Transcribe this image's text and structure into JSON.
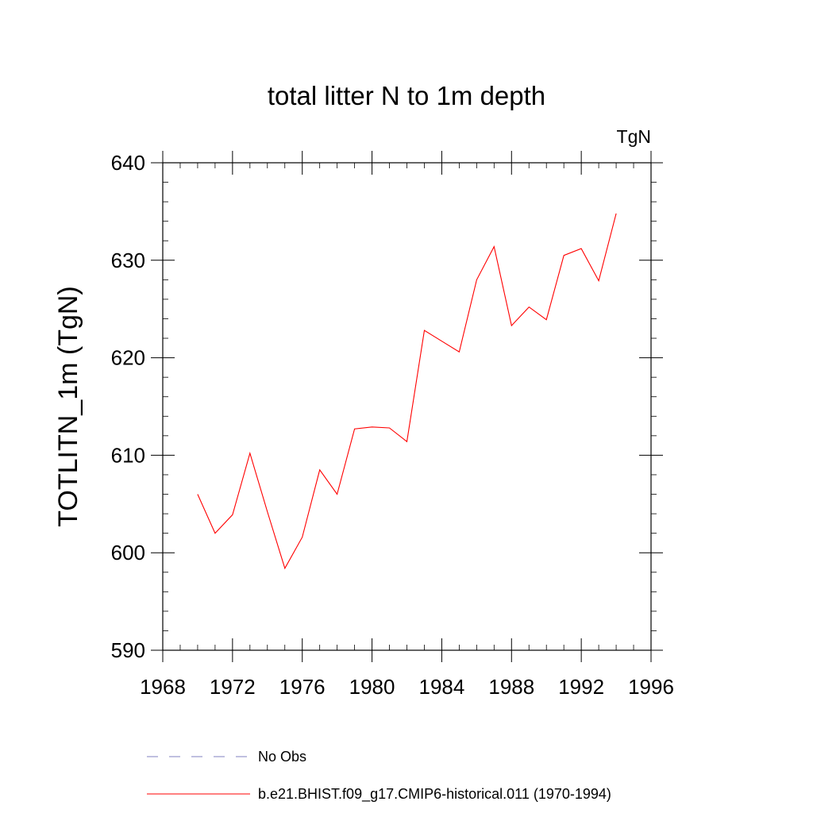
{
  "chart_data": {
    "type": "line",
    "title": "total litter N to 1m depth",
    "units_label": "TgN",
    "ylabel": "TOTLITN_1m  (TgN)",
    "xlabel": "",
    "xlim": [
      1968,
      1996
    ],
    "ylim": [
      590,
      640
    ],
    "x_ticks": [
      1968,
      1972,
      1976,
      1980,
      1984,
      1988,
      1992,
      1996
    ],
    "y_ticks": [
      590,
      600,
      610,
      620,
      630,
      640
    ],
    "x_minor_step": 1,
    "y_minor_step": 2,
    "grid": false,
    "legend_position": "bottom",
    "series": [
      {
        "name": "b.e21.BHIST.f09_g17.CMIP6-historical.011 (1970-1994)",
        "color": "#ff0000",
        "dash": "solid",
        "x": [
          1970,
          1971,
          1972,
          1973,
          1974,
          1975,
          1976,
          1977,
          1978,
          1979,
          1980,
          1981,
          1982,
          1983,
          1984,
          1985,
          1986,
          1987,
          1988,
          1989,
          1990,
          1991,
          1992,
          1993,
          1994
        ],
        "y": [
          606.0,
          602.0,
          603.9,
          610.2,
          604.2,
          598.4,
          601.6,
          608.5,
          606.0,
          612.7,
          612.9,
          612.8,
          611.4,
          622.8,
          621.7,
          620.6,
          628.0,
          631.4,
          623.3,
          625.2,
          623.9,
          630.5,
          631.2,
          627.9,
          634.8
        ]
      }
    ],
    "legend": [
      {
        "label": "No Obs",
        "color": "#8080c0",
        "dash": "dashed"
      },
      {
        "label": "b.e21.BHIST.f09_g17.CMIP6-historical.011 (1970-1994)",
        "color": "#ff0000",
        "dash": "solid"
      }
    ]
  }
}
